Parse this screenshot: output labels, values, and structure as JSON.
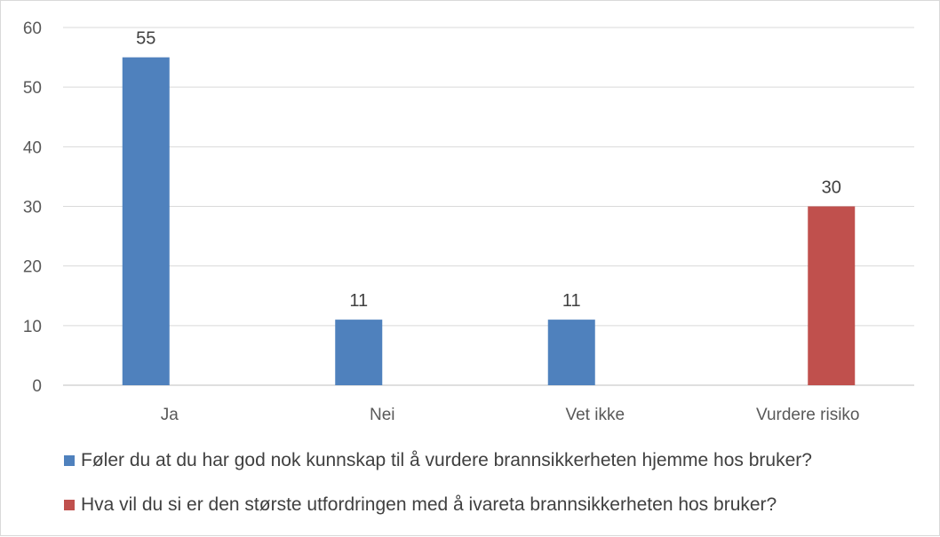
{
  "chart_data": {
    "type": "bar",
    "categories": [
      "Ja",
      "Nei",
      "Vet ikke",
      "Vurdere risiko"
    ],
    "series": [
      {
        "name": "Føler du at du har god nok kunnskap til å vurdere brannsikkerheten hjemme hos bruker?",
        "color": "#4f81bd",
        "values": [
          55,
          11,
          11,
          null
        ]
      },
      {
        "name": "Hva vil du si er den største utfordringen med å ivareta brannsikkerheten hos bruker?",
        "color": "#c0504d",
        "values": [
          null,
          null,
          null,
          30
        ]
      }
    ],
    "ylim": [
      0,
      60
    ],
    "yticks": [
      0,
      10,
      20,
      30,
      40,
      50,
      60
    ],
    "grid": true,
    "legend_position": "bottom"
  }
}
